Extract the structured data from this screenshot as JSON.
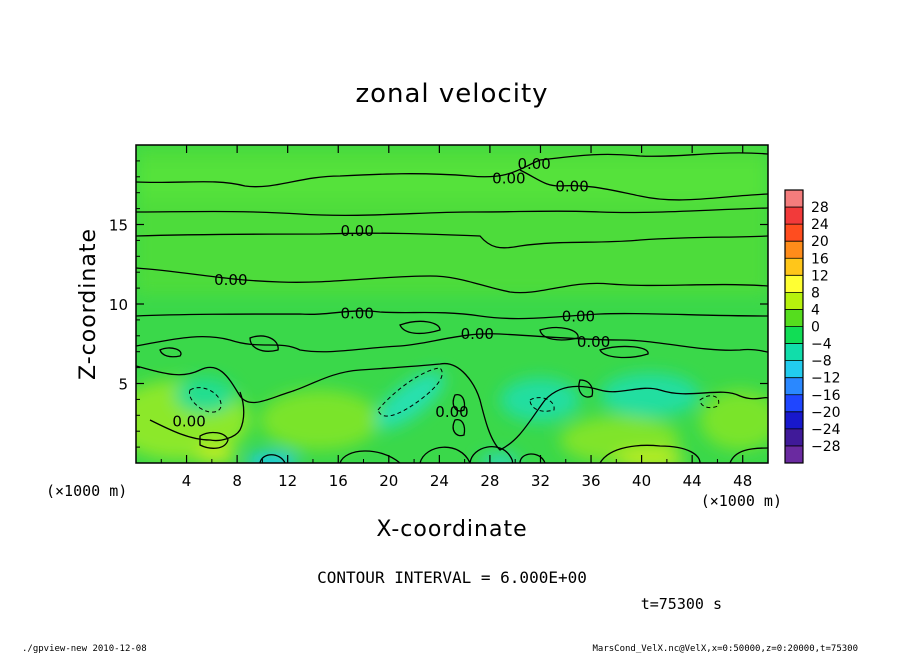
{
  "chart_data": {
    "type": "heatmap",
    "title": "zonal velocity",
    "xlabel": "X-coordinate",
    "ylabel": "Z-coordinate",
    "x_unit_label": "(×1000 m)",
    "x_unit_label_left": "(×1000 m)",
    "xlim": [
      0,
      50
    ],
    "ylim": [
      0,
      20
    ],
    "x_ticks": [
      "4",
      "8",
      "12",
      "16",
      "20",
      "24",
      "28",
      "32",
      "36",
      "40",
      "44",
      "48"
    ],
    "y_ticks": [
      "5",
      "10",
      "15"
    ],
    "contour_label": "0.00",
    "contour_interval_text": "CONTOUR INTERVAL = 6.000E+00",
    "time_text": "t=75300 s",
    "colorbar": {
      "labels": [
        "28",
        "24",
        "20",
        "16",
        "12",
        "8",
        "4",
        "0",
        "−4",
        "−8",
        "−12",
        "−16",
        "−20",
        "−24",
        "−28"
      ],
      "colors": [
        "#f47c7c",
        "#f23a3a",
        "#ff4d1f",
        "#ff8c1a",
        "#ffc61a",
        "#ffff33",
        "#b6f20d",
        "#55dd1e",
        "#11dd55",
        "#11ddaa",
        "#22ccee",
        "#2a88ff",
        "#1f46ff",
        "#1818cc",
        "#401a99",
        "#6a2aa0"
      ]
    },
    "field_summary": {
      "background": "near 0 (green)",
      "positive_regions": "weak positive (yellow-green) near surface z<2 km",
      "negative_regions": "weak negative (cyan) around x=20-24, z=2-5 km and x=30-44, z=2-4 km"
    },
    "grid": false,
    "legend_position": "right"
  },
  "footer": {
    "left": "./gpview-new   2010-12-08",
    "right": "MarsCond_VelX.nc@VelX,x=0:50000,z=0:20000,t=75300"
  }
}
